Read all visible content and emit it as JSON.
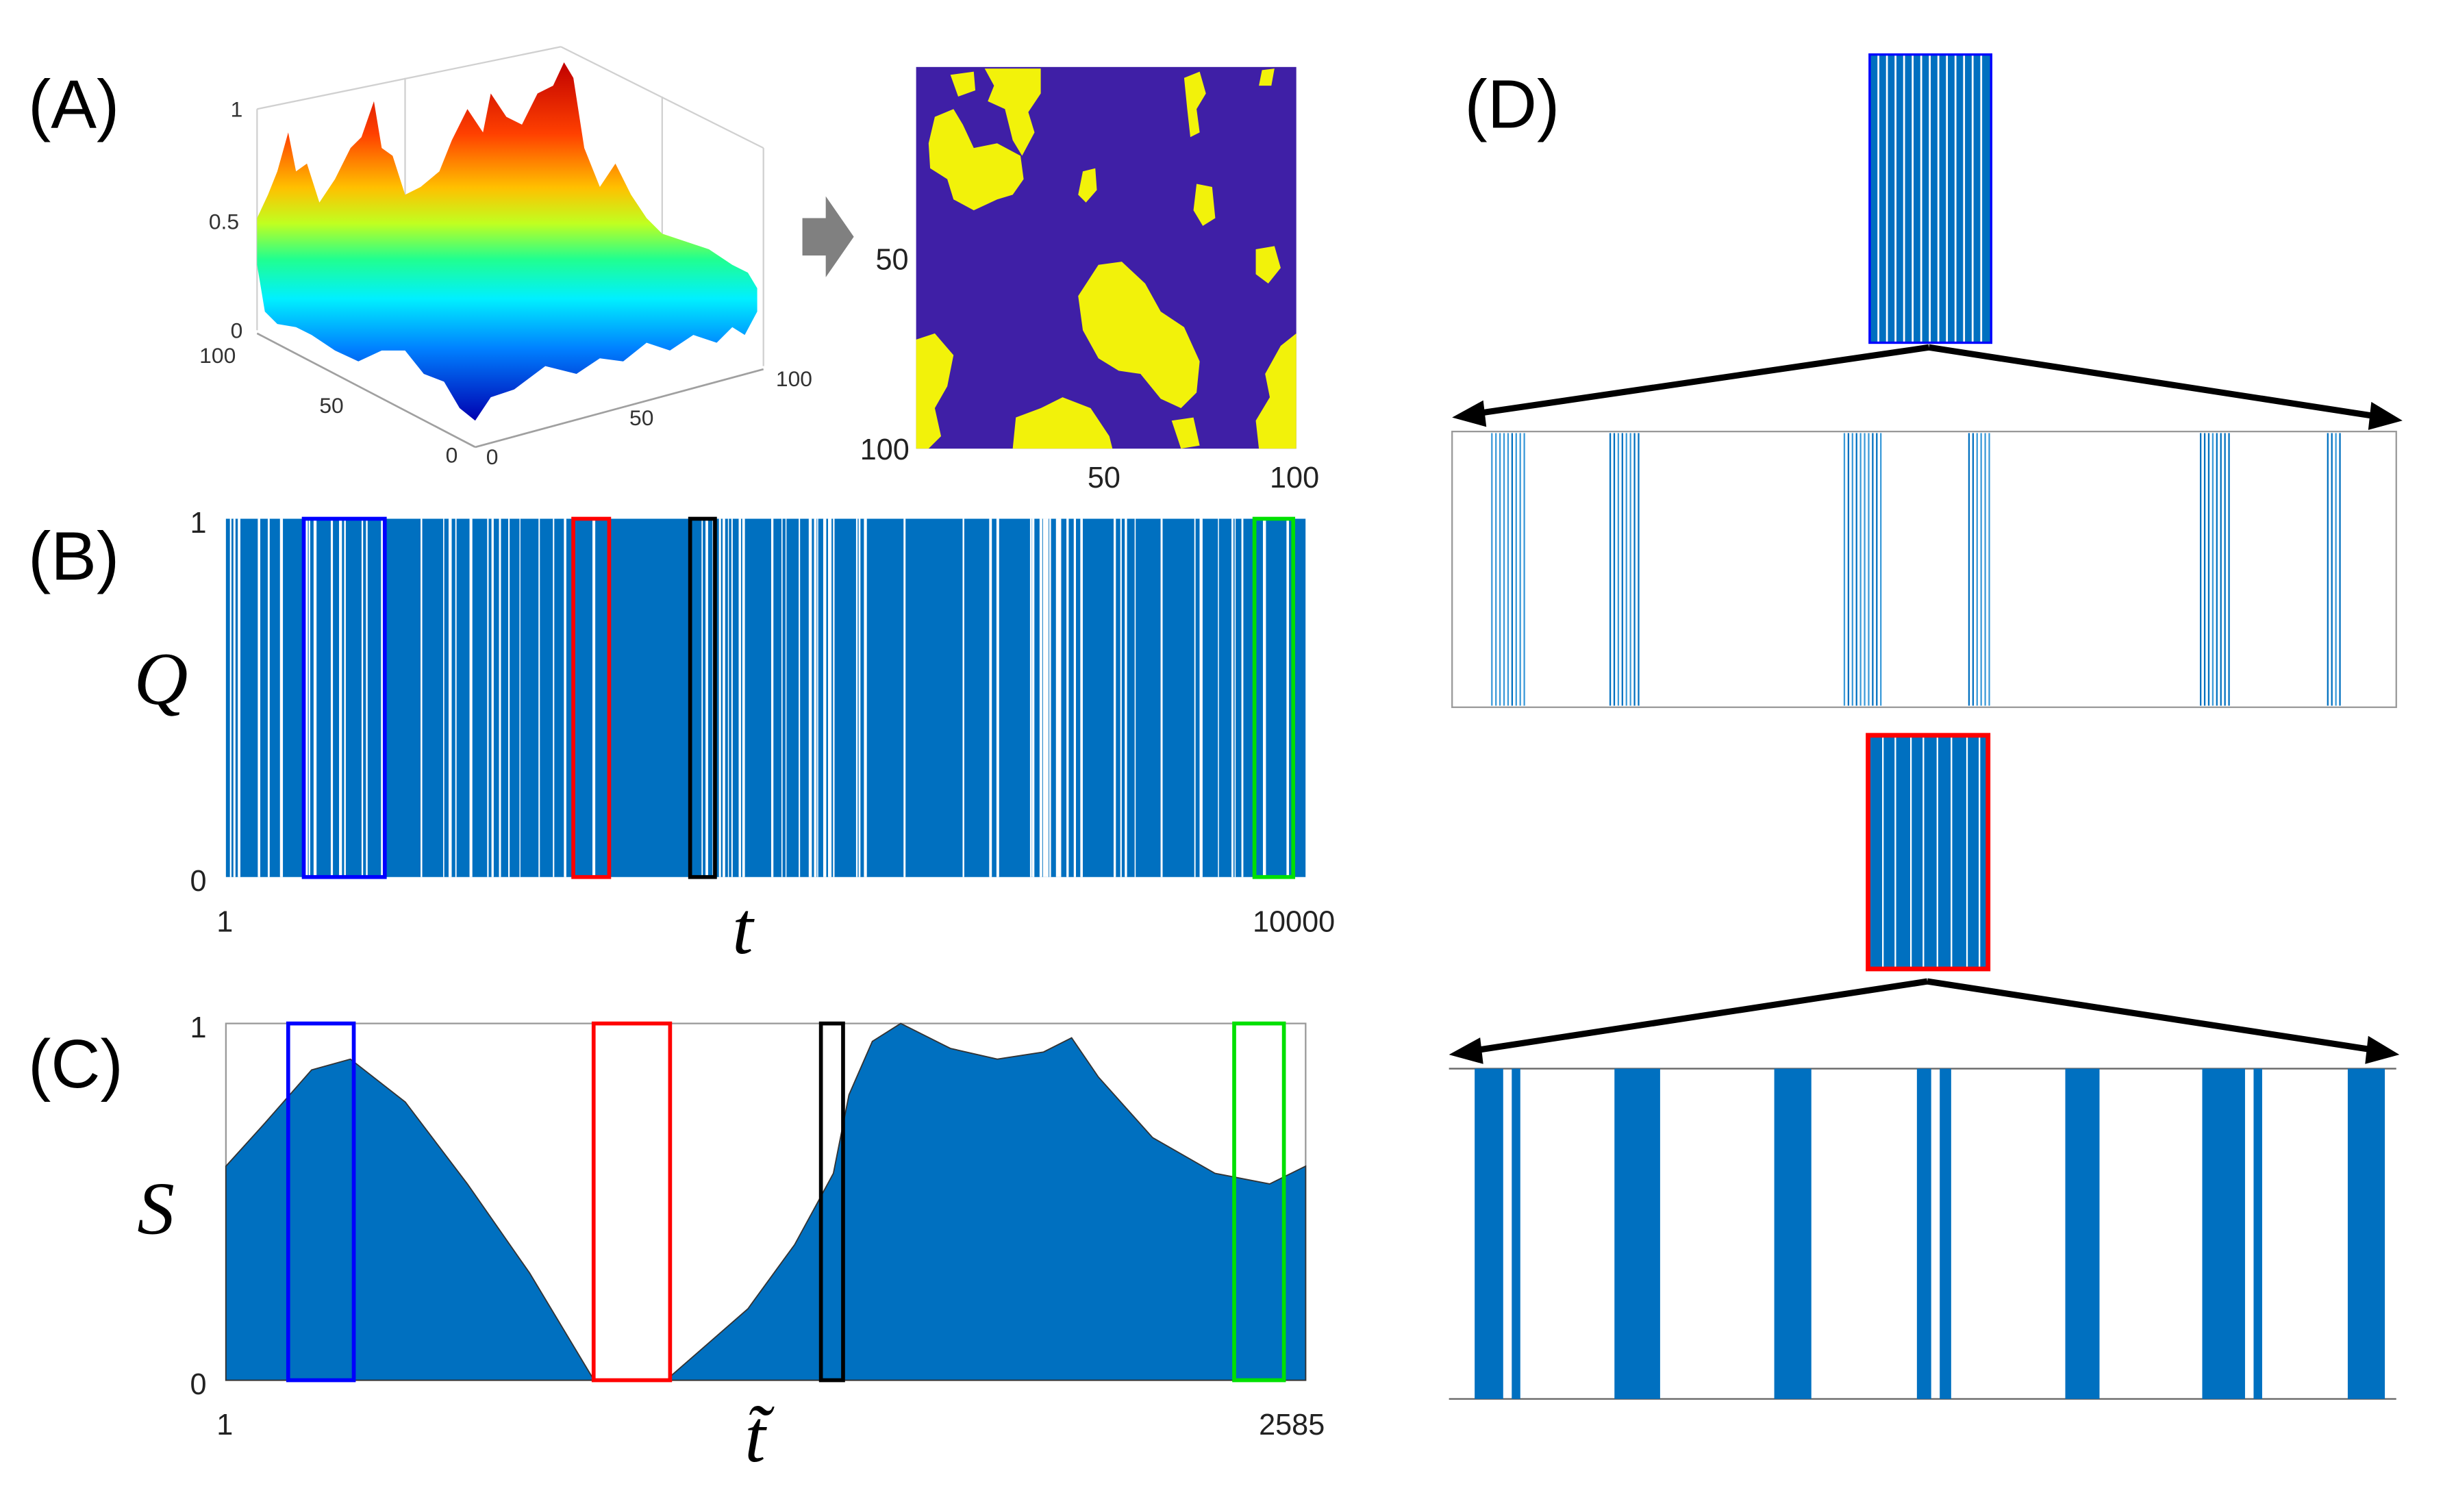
{
  "panel_labels": {
    "A": "(A)",
    "B": "(B)",
    "C": "(C)",
    "D": "(D)"
  },
  "colors": {
    "bar_blue": "#0070c0",
    "heat_low": "#3f1fa6",
    "heat_high": "#f2f20a",
    "arrow_grey": "#808080",
    "win_blue": "#0000ff",
    "win_red": "#ff0000",
    "win_black": "#000000",
    "win_green": "#00e000"
  },
  "chart_data": [
    {
      "id": "A-surface",
      "type": "surface",
      "title": "",
      "zlim": [
        0,
        1
      ],
      "z_ticks": [
        "0",
        "0.5",
        "1"
      ],
      "y_ticks": [
        "100",
        "50",
        "0"
      ],
      "x_ticks": [
        "0",
        "50",
        "100"
      ],
      "colormap": "jet"
    },
    {
      "id": "A-heatmap",
      "type": "heatmap",
      "y_ticks": [
        "50",
        "100"
      ],
      "x_ticks": [
        "50",
        "100"
      ],
      "xlim": [
        1,
        100
      ],
      "ylim": [
        1,
        100
      ],
      "values": "binary (thresholded surface): yellow = 1, purple = 0"
    },
    {
      "id": "B",
      "type": "bar",
      "xlabel": "t",
      "ylabel": "Q",
      "xlim": [
        1,
        10000
      ],
      "ylim": [
        0,
        1
      ],
      "x_ticks": [
        "1",
        "10000"
      ],
      "y_ticks": [
        "0",
        "1"
      ],
      "values": "binary barcode: Q = 1 (blue) or 0 (white) for each t",
      "gap_density_segments": [
        {
          "range": [
            1,
            1500
          ],
          "gap_rate": 0.45
        },
        {
          "range": [
            1500,
            3200
          ],
          "gap_rate": 0.3
        },
        {
          "range": [
            3200,
            4300
          ],
          "gap_rate": 0.08
        },
        {
          "range": [
            4300,
            5500
          ],
          "gap_rate": 0.6
        },
        {
          "range": [
            5500,
            10000
          ],
          "gap_rate": 0.4
        }
      ],
      "windows": [
        {
          "color": "blue",
          "range": [
            722,
            1472
          ]
        },
        {
          "color": "red",
          "range": [
            3218,
            3550
          ]
        },
        {
          "color": "black",
          "range": [
            4300,
            4530
          ]
        },
        {
          "color": "green",
          "range": [
            9526,
            9885
          ]
        }
      ]
    },
    {
      "id": "C",
      "type": "area",
      "xlabel": "t̃",
      "ylabel": "S",
      "xlim": [
        1,
        2585
      ],
      "ylim": [
        0,
        1
      ],
      "x_ticks": [
        "1",
        "2585"
      ],
      "y_ticks": [
        "0",
        "1"
      ],
      "x": [
        1,
        94,
        206,
        299,
        430,
        579,
        728,
        877,
        1064,
        1250,
        1362,
        1418,
        1455,
        1492,
        1548,
        1616,
        1735,
        1847,
        1958,
        2025,
        2089,
        2219,
        2368,
        2499,
        2585
      ],
      "y": [
        0.6,
        0.72,
        0.87,
        0.9,
        0.78,
        0.55,
        0.3,
        0.01,
        0.01,
        0.2,
        0.38,
        0.5,
        0.58,
        0.8,
        0.95,
        1.0,
        0.93,
        0.9,
        0.92,
        0.96,
        0.85,
        0.68,
        0.58,
        0.55,
        0.6
      ],
      "windows": [
        {
          "color": "blue",
          "range": [
            150,
            307
          ]
        },
        {
          "color": "red",
          "range": [
            881,
            1064
          ]
        },
        {
          "color": "black",
          "range": [
            1425,
            1478
          ]
        },
        {
          "color": "green",
          "range": [
            2414,
            2533
          ]
        }
      ]
    },
    {
      "id": "D-top",
      "type": "bar",
      "source_window": "blue",
      "xlim": [
        722,
        1472
      ],
      "line_groups": [
        [
          753,
          781
        ],
        [
          847,
          871
        ],
        [
          1033,
          1063
        ],
        [
          1132,
          1149
        ],
        [
          1316,
          1341
        ],
        [
          1417,
          1427
        ]
      ]
    },
    {
      "id": "D-bottom",
      "type": "bar",
      "source_window": "red",
      "xlim": [
        3218,
        3550
      ],
      "blocks": [
        [
          3227,
          3237
        ],
        [
          3240,
          3243
        ],
        [
          3276,
          3292
        ],
        [
          3332,
          3345
        ],
        [
          3382,
          3387
        ],
        [
          3390,
          3394
        ],
        [
          3434,
          3446
        ],
        [
          3482,
          3497
        ],
        [
          3500,
          3503
        ],
        [
          3533,
          3546
        ]
      ]
    }
  ]
}
